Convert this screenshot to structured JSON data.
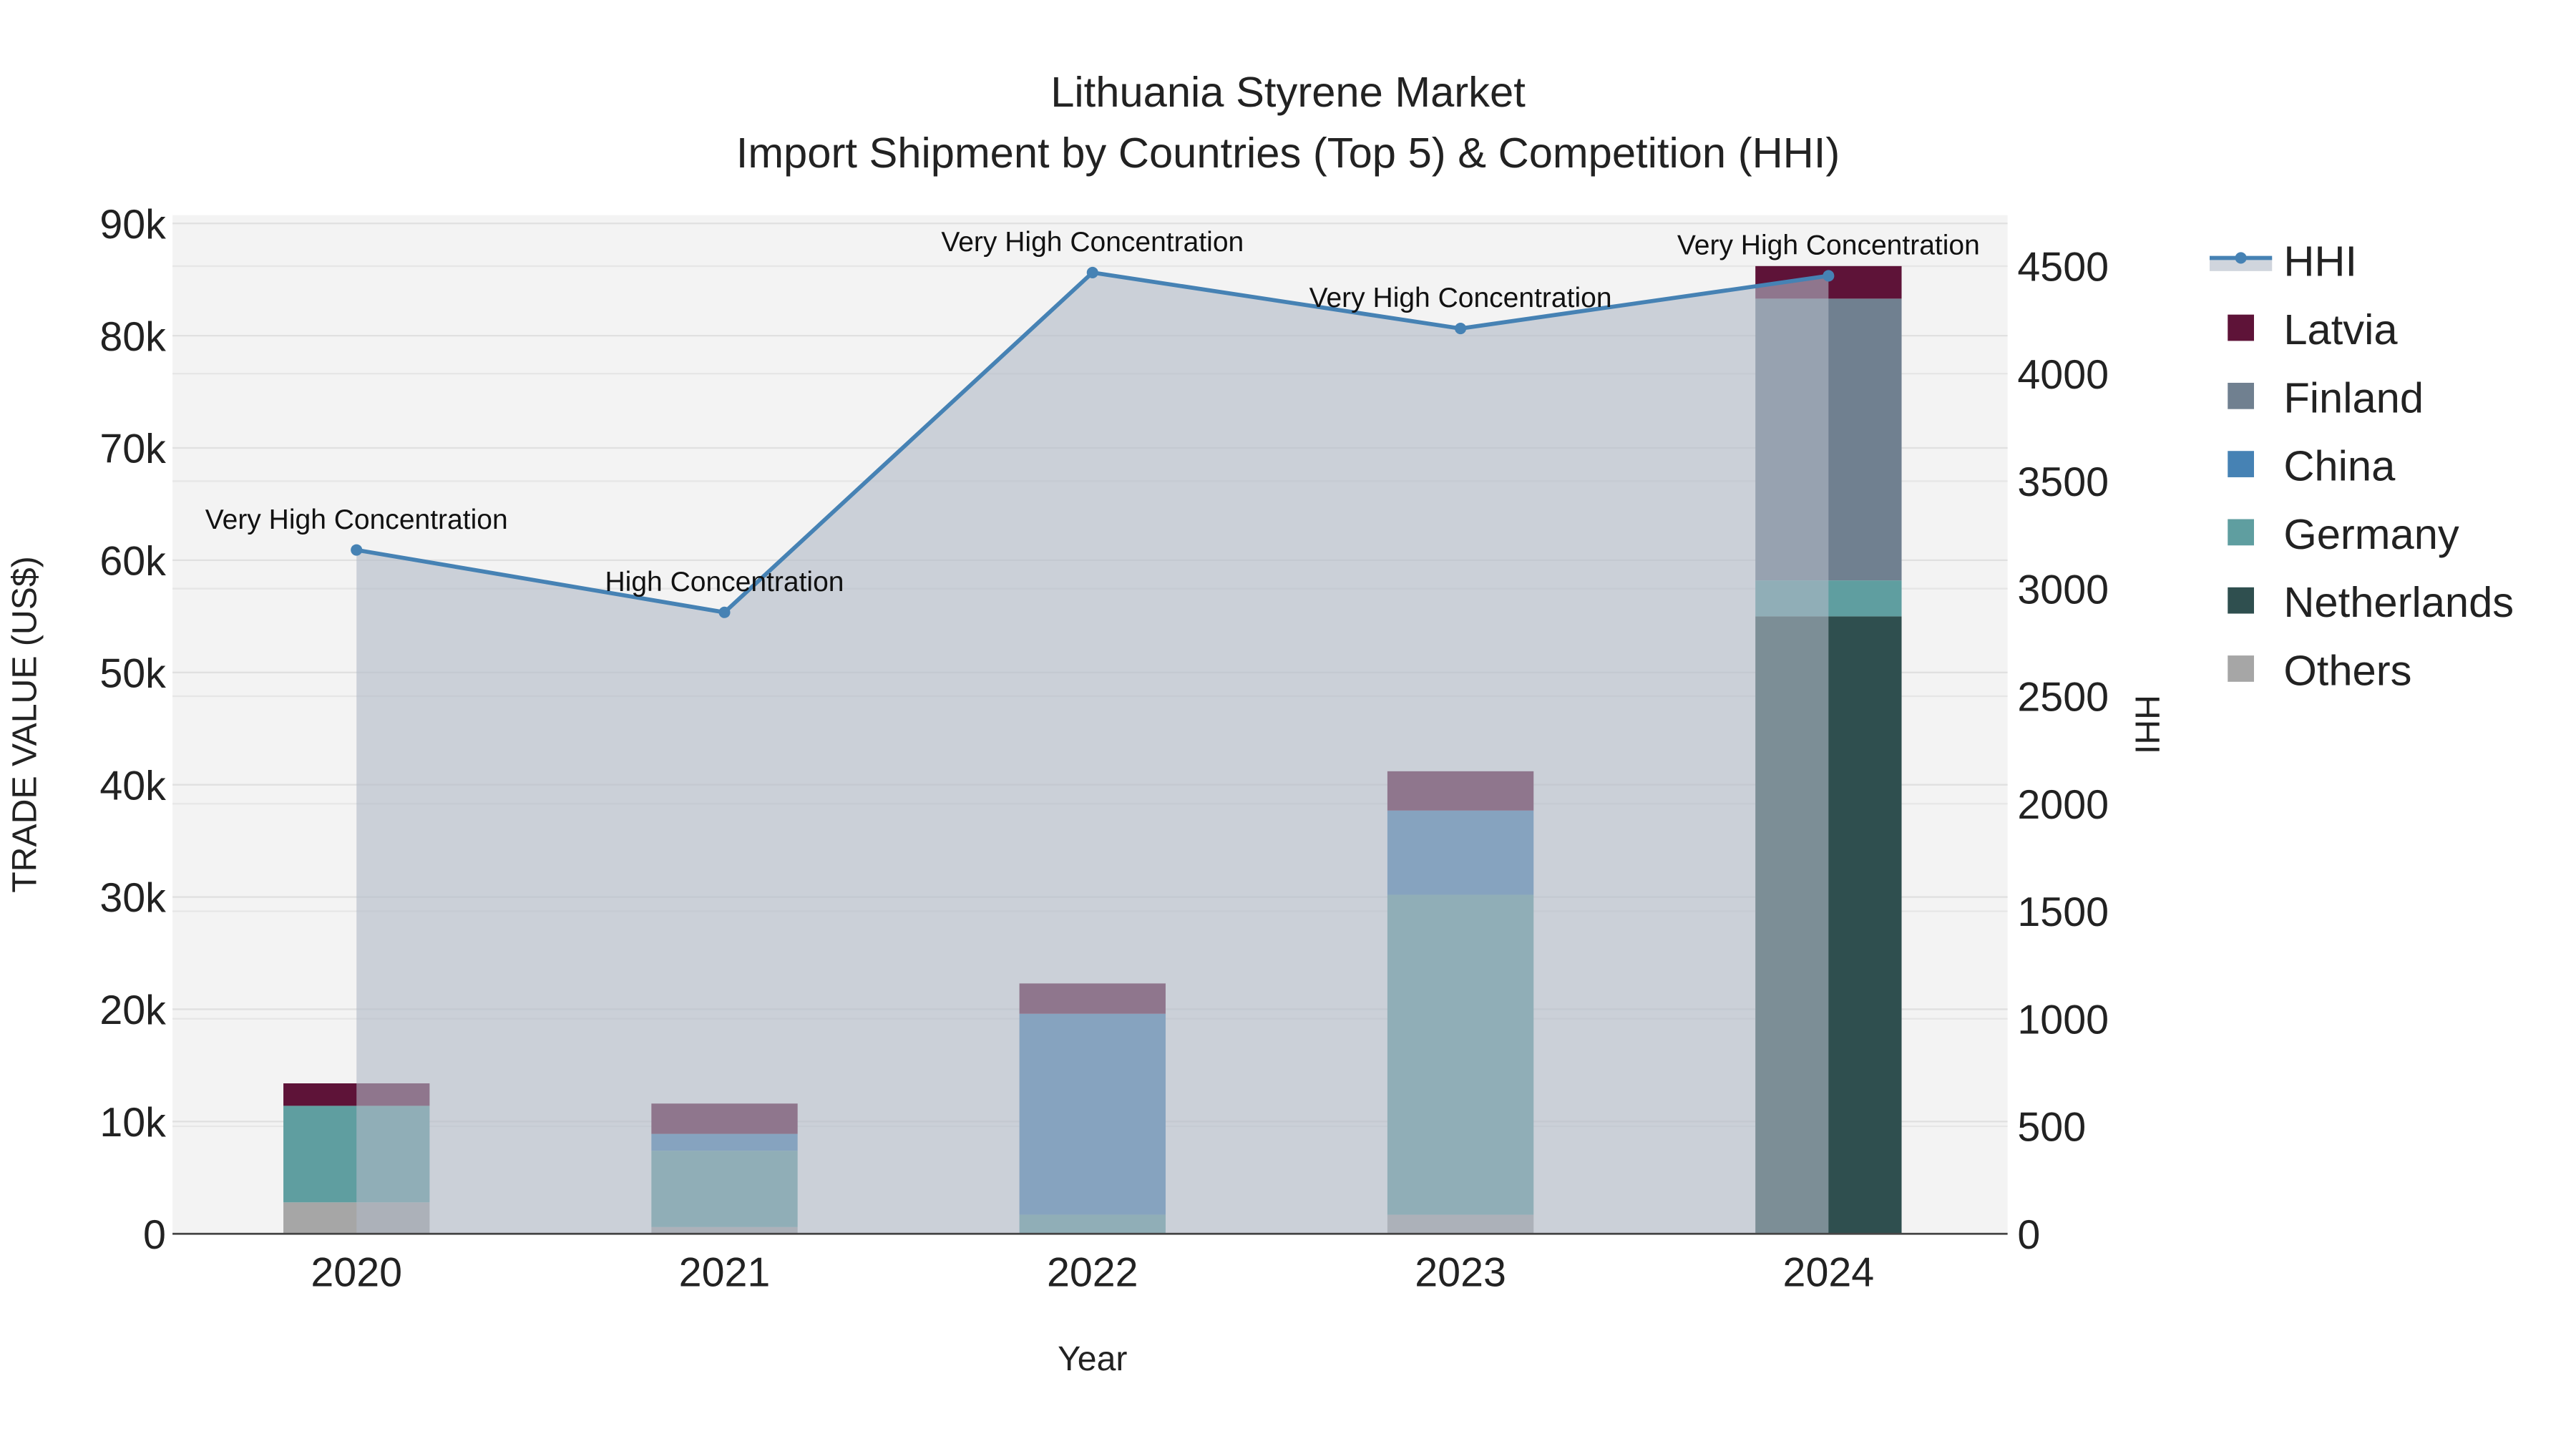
{
  "chart_data": {
    "type": "bar",
    "stacked": true,
    "title": "Lithuania Styrene Market",
    "subtitle": "Import Shipment by Countries (Top 5) & Competition (HHI)",
    "xlabel": "Year",
    "ylabel": "TRADE VALUE (US$)",
    "y2label": "HHI",
    "categories": [
      "2020",
      "2021",
      "2022",
      "2023",
      "2024"
    ],
    "ylim": [
      0,
      90000
    ],
    "y_ticks": [
      0,
      10000,
      20000,
      30000,
      40000,
      50000,
      60000,
      70000,
      80000,
      90000
    ],
    "y_tick_labels": [
      "0",
      "10k",
      "20k",
      "30k",
      "40k",
      "50k",
      "60k",
      "70k",
      "80k",
      "90k"
    ],
    "y2lim": [
      0,
      4700
    ],
    "y2_ticks": [
      0,
      500,
      1000,
      1500,
      2000,
      2500,
      3000,
      3500,
      4000,
      4500
    ],
    "y2_tick_labels": [
      "0",
      "500",
      "1000",
      "1500",
      "2000",
      "2500",
      "3000",
      "3500",
      "4000",
      "4500"
    ],
    "grid": true,
    "legend_position": "right",
    "series": [
      {
        "name": "Others",
        "color": "#a6a6a6",
        "values": [
          2800,
          600,
          0,
          1700,
          0
        ]
      },
      {
        "name": "Netherlands",
        "color": "#2f4f4f",
        "values": [
          0,
          0,
          0,
          0,
          55000
        ]
      },
      {
        "name": "Germany",
        "color": "#5f9ea0",
        "values": [
          8600,
          6800,
          1700,
          28500,
          3200
        ]
      },
      {
        "name": "China",
        "color": "#4682b4",
        "values": [
          0,
          1500,
          17900,
          7500,
          0
        ]
      },
      {
        "name": "Finland",
        "color": "#708090",
        "values": [
          0,
          0,
          0,
          0,
          25100
        ]
      },
      {
        "name": "Latvia",
        "color": "#5e1338",
        "values": [
          2000,
          2700,
          2700,
          3500,
          2900
        ]
      }
    ],
    "hhi": {
      "name": "HHI",
      "color": "#4682b4",
      "values": [
        3180,
        2890,
        4470,
        4210,
        4455
      ],
      "annotations": [
        "Very High Concentration",
        "High Concentration",
        "Very High Concentration",
        "Very High Concentration",
        "Very High Concentration"
      ]
    },
    "legend_order": [
      "HHI",
      "Latvia",
      "Finland",
      "China",
      "Germany",
      "Netherlands",
      "Others"
    ]
  }
}
